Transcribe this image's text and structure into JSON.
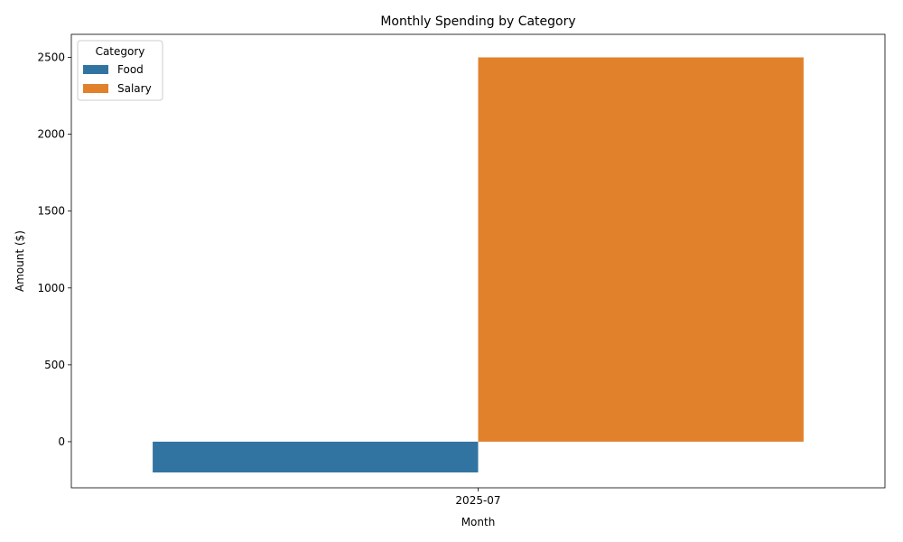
{
  "chart_data": {
    "type": "bar",
    "title": "Monthly Spending by Category",
    "xlabel": "Month",
    "ylabel": "Amount ($)",
    "categories": [
      "2025-07"
    ],
    "series": [
      {
        "name": "Food",
        "values": [
          -200
        ],
        "color": "#3274a1"
      },
      {
        "name": "Salary",
        "values": [
          2500
        ],
        "color": "#e1812c"
      }
    ],
    "ylim": [
      -300,
      2650
    ],
    "yticks": [
      0,
      500,
      1000,
      1500,
      2000,
      2500
    ],
    "grid": false,
    "legend": {
      "title": "Category",
      "placement": "top-left"
    }
  }
}
